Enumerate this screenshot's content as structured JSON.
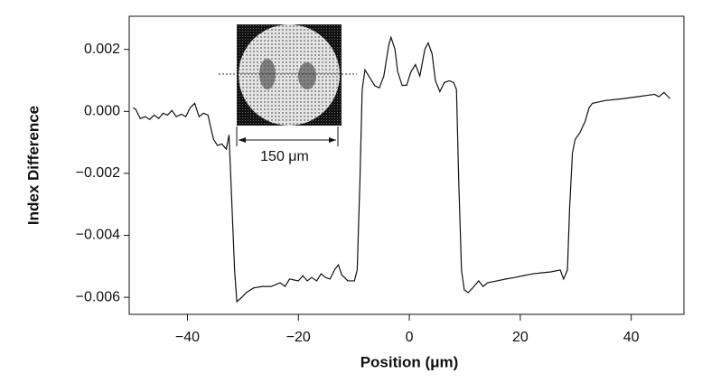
{
  "chart_data": {
    "type": "line",
    "x_label": "Position (μm)",
    "y_label": "Index Difference",
    "annotation": "150 μm",
    "color": "#111111",
    "xlim": [
      -50.5,
      49.5
    ],
    "ylim": [
      -0.00655,
      0.00307
    ],
    "xticks": [
      {
        "value": -40,
        "label": "−40"
      },
      {
        "value": -20,
        "label": "−20"
      },
      0,
      20,
      40
    ],
    "yticks": [
      {
        "value": 0.002,
        "label": "0.002"
      },
      {
        "value": 0,
        "label": "0.000"
      },
      {
        "value": -0.002,
        "label": "−0.002"
      },
      {
        "value": -0.004,
        "label": "−0.004"
      },
      {
        "value": -0.006,
        "label": "−0.006"
      }
    ],
    "x": [
      -49.8,
      -49.3,
      -48.5,
      -47.6,
      -46.8,
      -46.0,
      -45.2,
      -44.4,
      -43.6,
      -42.8,
      -42.0,
      -41.1,
      -40.3,
      -39.5,
      -38.7,
      -37.9,
      -37.1,
      -36.3,
      -35.8,
      -35.3,
      -34.6,
      -33.8,
      -33.0,
      -32.5,
      -32.0,
      -31.5,
      -31.1,
      -30.2,
      -29.4,
      -28.1,
      -26.5,
      -24.9,
      -23.3,
      -22.4,
      -21.6,
      -20.0,
      -19.2,
      -18.4,
      -17.6,
      -16.7,
      -15.9,
      -15.1,
      -14.3,
      -13.5,
      -12.8,
      -12.2,
      -11.1,
      -9.9,
      -9.4,
      -8.9,
      -8.5,
      -8.0,
      -7.0,
      -6.2,
      -5.4,
      -4.6,
      -3.7,
      -3.3,
      -2.6,
      -2.1,
      -1.3,
      -0.5,
      0.3,
      1.1,
      1.9,
      2.8,
      3.4,
      4.1,
      4.7,
      5.5,
      6.3,
      7.2,
      8.0,
      8.5,
      8.9,
      9.4,
      9.9,
      10.6,
      11.4,
      12.5,
      13.3,
      14.1,
      15.8,
      17.4,
      19.0,
      20.6,
      22.3,
      23.9,
      25.5,
      27.2,
      27.8,
      28.5,
      28.9,
      29.4,
      29.9,
      30.7,
      31.7,
      32.4,
      33.0,
      35.3,
      38.5,
      41.8,
      44.2,
      45.0,
      45.9,
      47.0
    ],
    "values": [
      0.00012,
      6e-05,
      -0.00023,
      -0.00017,
      -0.00026,
      -0.00012,
      -0.00023,
      -6e-05,
      -0.00012,
      3e-05,
      -0.00017,
      -9e-05,
      -0.00017,
      0.00012,
      0.00026,
      -0.00017,
      -6e-05,
      -0.00012,
      -0.00052,
      -0.0009,
      -0.0011,
      -0.00105,
      -0.00122,
      -0.00076,
      -0.00294,
      -0.00512,
      -0.00614,
      -0.006,
      -0.00585,
      -0.0057,
      -0.00565,
      -0.00565,
      -0.00553,
      -0.00565,
      -0.00541,
      -0.00547,
      -0.0053,
      -0.00547,
      -0.00536,
      -0.00547,
      -0.00524,
      -0.00536,
      -0.00541,
      -0.00512,
      -0.00495,
      -0.00527,
      -0.00547,
      -0.00547,
      -0.00512,
      -0.00221,
      0.0007,
      0.00134,
      0.00105,
      0.00082,
      0.00076,
      0.00114,
      0.00215,
      0.00239,
      0.00201,
      0.00128,
      0.00084,
      0.00084,
      0.00128,
      0.00151,
      0.00114,
      0.00201,
      0.00221,
      0.00186,
      0.00099,
      0.00064,
      0.00093,
      0.00099,
      0.00093,
      0.0007,
      -0.00221,
      -0.00512,
      -0.00576,
      -0.00585,
      -0.0057,
      -0.00547,
      -0.00565,
      -0.00553,
      -0.00547,
      -0.00541,
      -0.00536,
      -0.0053,
      -0.00524,
      -0.00521,
      -0.00518,
      -0.00512,
      -0.00541,
      -0.00512,
      -0.00309,
      -0.00134,
      -0.0009,
      -0.0007,
      -0.00032,
      0.00012,
      0.00026,
      0.00035,
      0.00041,
      0.00049,
      0.00055,
      0.00047,
      0.00061,
      0.00041
    ]
  }
}
